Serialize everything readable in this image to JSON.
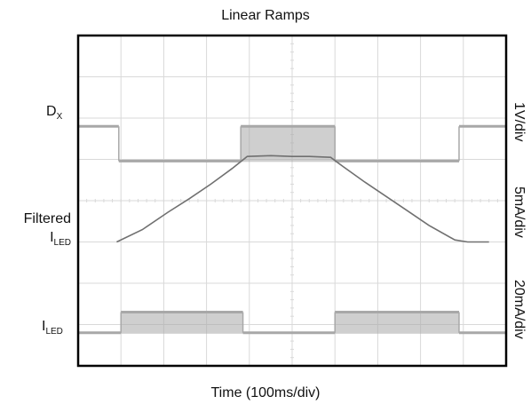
{
  "chart_data": {
    "type": "line",
    "title": "Linear Ramps",
    "xlabel": "Time (100ms/div)",
    "grid": true,
    "x_divisions": 10,
    "y_divisions": 8,
    "traces": [
      {
        "label_main": "D",
        "label_sub": "X",
        "scale": "1V/div",
        "kind": "digital",
        "low_level_div": -0.84,
        "high_level_div": 0,
        "transitions_div": [
          0.95,
          3.8,
          6.0,
          8.9
        ],
        "start_state": "high"
      },
      {
        "label_main": "Filtered",
        "label_sub_main": "I",
        "label_sub": "LED",
        "scale": "5mA/div",
        "kind": "analog",
        "points_div": [
          [
            0.9,
            0.0
          ],
          [
            1.5,
            0.3
          ],
          [
            2.1,
            0.72
          ],
          [
            2.6,
            1.05
          ],
          [
            3.1,
            1.4
          ],
          [
            3.6,
            1.78
          ],
          [
            3.95,
            2.07
          ],
          [
            4.5,
            2.09
          ],
          [
            5.0,
            2.07
          ],
          [
            5.4,
            2.07
          ],
          [
            5.9,
            2.05
          ],
          [
            6.2,
            1.82
          ],
          [
            6.7,
            1.45
          ],
          [
            7.2,
            1.1
          ],
          [
            7.7,
            0.75
          ],
          [
            8.2,
            0.4
          ],
          [
            8.8,
            0.05
          ],
          [
            9.1,
            0.0
          ],
          [
            9.6,
            0.0
          ]
        ]
      },
      {
        "label_main": "I",
        "label_sub": "LED",
        "scale": "20mA/div",
        "kind": "digital",
        "low_level_div": 0,
        "high_level_div": 0.5,
        "transitions_div": [
          1.0,
          3.85,
          6.0,
          8.9
        ],
        "start_state": "low"
      }
    ]
  },
  "colors": {
    "frame": "#000000",
    "grid": "#d9d9d9",
    "trace": "#a8a8a8",
    "analog_trace": "#707070"
  }
}
